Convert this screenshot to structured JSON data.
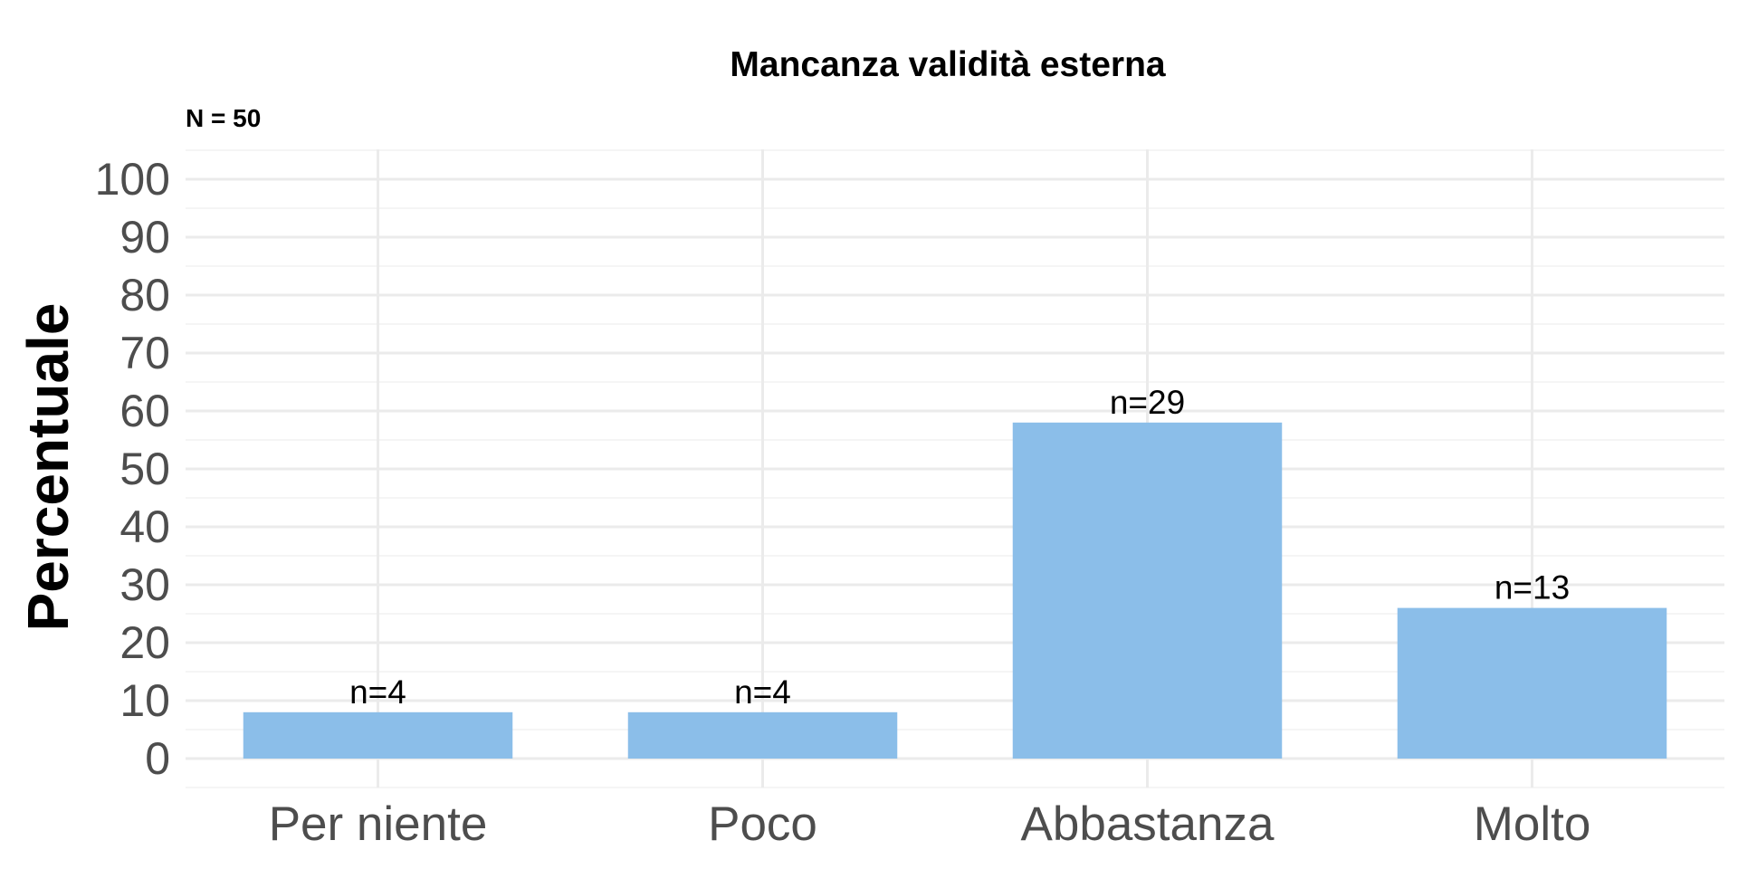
{
  "chart_data": {
    "type": "bar",
    "title": "Mancanza validità esterna",
    "subtitle": "N = 50",
    "xlabel": "",
    "ylabel": "Percentuale",
    "categories": [
      "Per niente",
      "Poco",
      "Abbastanza",
      "Molto"
    ],
    "values": [
      8,
      8,
      58,
      26
    ],
    "counts": [
      "n=4",
      "n=4",
      "n=29",
      "n=13"
    ],
    "ylim": [
      0,
      100
    ],
    "yticks": [
      "0",
      "10",
      "20",
      "30",
      "40",
      "50",
      "60",
      "70",
      "80",
      "90",
      "100"
    ],
    "grid": true,
    "bar_color": "#8bbee9"
  }
}
